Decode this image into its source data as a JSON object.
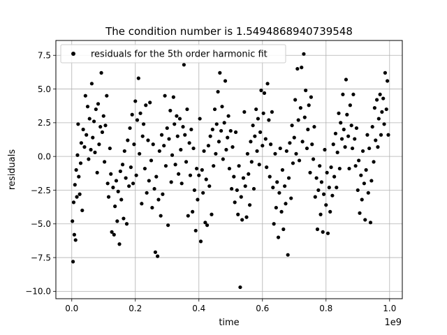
{
  "colors": {
    "points": "#000000",
    "grid": "#b0b0b0",
    "axes": "#000000",
    "background": "#ffffff"
  },
  "chart_data": {
    "type": "scatter",
    "title": "The condition number is 1.5494868940739548",
    "xlabel": "time",
    "ylabel": "residuals",
    "x_offset_label": "1e9",
    "xlim": [
      -0.05,
      1.04
    ],
    "ylim": [
      -10.55,
      8.6
    ],
    "x_ticks": [
      0.0,
      0.2,
      0.4,
      0.6,
      0.8,
      1.0
    ],
    "x_tick_labels": [
      "0.0",
      "0.2",
      "0.4",
      "0.6",
      "0.8",
      "1.0"
    ],
    "y_ticks": [
      -10.0,
      -7.5,
      -5.0,
      -2.5,
      0.0,
      2.5,
      5.0,
      7.5
    ],
    "y_tick_labels": [
      "−10.0",
      "−7.5",
      "−5.0",
      "−2.5",
      "0.0",
      "2.5",
      "5.0",
      "7.5"
    ],
    "grid": true,
    "legend": {
      "placement": "upper-left",
      "entries": [
        "residuals for the 5th order harmonic fit"
      ]
    },
    "series": [
      {
        "name": "residuals for the 5th order harmonic fit",
        "marker": "circle",
        "points": [
          [
            0.002,
            -4.8
          ],
          [
            0.004,
            -7.8
          ],
          [
            0.006,
            -3.4
          ],
          [
            0.008,
            -5.8
          ],
          [
            0.01,
            -2.1
          ],
          [
            0.012,
            -6.2
          ],
          [
            0.014,
            -1.0
          ],
          [
            0.016,
            -3.0
          ],
          [
            0.018,
            0.1
          ],
          [
            0.02,
            2.4
          ],
          [
            0.022,
            -1.5
          ],
          [
            0.025,
            -2.8
          ],
          [
            0.028,
            -0.5
          ],
          [
            0.03,
            1.0
          ],
          [
            0.033,
            -4.0
          ],
          [
            0.036,
            2.0
          ],
          [
            0.04,
            0.7
          ],
          [
            0.043,
            4.5
          ],
          [
            0.046,
            1.6
          ],
          [
            0.05,
            3.7
          ],
          [
            0.053,
            -0.2
          ],
          [
            0.056,
            2.8
          ],
          [
            0.06,
            0.5
          ],
          [
            0.063,
            5.4
          ],
          [
            0.066,
            1.4
          ],
          [
            0.07,
            2.6
          ],
          [
            0.073,
            0.3
          ],
          [
            0.076,
            3.5
          ],
          [
            0.08,
            -1.2
          ],
          [
            0.083,
            3.9
          ],
          [
            0.086,
            0.9
          ],
          [
            0.09,
            2.2
          ],
          [
            0.093,
            6.2
          ],
          [
            0.096,
            1.8
          ],
          [
            0.1,
            3.0
          ],
          [
            0.103,
            -0.4
          ],
          [
            0.106,
            2.3
          ],
          [
            0.11,
            4.5
          ],
          [
            0.113,
            -2.0
          ],
          [
            0.116,
            -3.0
          ],
          [
            0.12,
            0.6
          ],
          [
            0.123,
            -1.3
          ],
          [
            0.126,
            -5.6
          ],
          [
            0.13,
            -2.3
          ],
          [
            0.133,
            -5.8
          ],
          [
            0.136,
            -3.7
          ],
          [
            0.14,
            -1.8
          ],
          [
            0.143,
            -4.8
          ],
          [
            0.146,
            -2.6
          ],
          [
            0.15,
            -6.5
          ],
          [
            0.153,
            -1.1
          ],
          [
            0.156,
            -3.2
          ],
          [
            0.16,
            -0.6
          ],
          [
            0.163,
            -4.6
          ],
          [
            0.166,
            0.4
          ],
          [
            0.17,
            -1.6
          ],
          [
            0.173,
            -5.0
          ],
          [
            0.176,
            1.2
          ],
          [
            0.18,
            -2.2
          ],
          [
            0.183,
            2.1
          ],
          [
            0.186,
            -0.8
          ],
          [
            0.19,
            3.1
          ],
          [
            0.193,
            -2.0
          ],
          [
            0.196,
            0.9
          ],
          [
            0.2,
            4.1
          ],
          [
            0.203,
            -1.4
          ],
          [
            0.206,
            2.7
          ],
          [
            0.21,
            5.8
          ],
          [
            0.213,
            0.2
          ],
          [
            0.216,
            3.2
          ],
          [
            0.22,
            -3.5
          ],
          [
            0.223,
            1.5
          ],
          [
            0.226,
            2.4
          ],
          [
            0.23,
            -0.9
          ],
          [
            0.233,
            3.8
          ],
          [
            0.236,
            -2.7
          ],
          [
            0.24,
            1.2
          ],
          [
            0.243,
            -1.8
          ],
          [
            0.246,
            4.0
          ],
          [
            0.25,
            -0.3
          ],
          [
            0.253,
            -3.8
          ],
          [
            0.256,
            0.9
          ],
          [
            0.26,
            -2.4
          ],
          [
            0.263,
            -7.1
          ],
          [
            0.266,
            -1.5
          ],
          [
            0.27,
            -7.4
          ],
          [
            0.273,
            -3.2
          ],
          [
            0.276,
            0.4
          ],
          [
            0.28,
            -4.4
          ],
          [
            0.283,
            1.6
          ],
          [
            0.286,
            -2.8
          ],
          [
            0.29,
            0.8
          ],
          [
            0.293,
            4.5
          ],
          [
            0.296,
            -0.7
          ],
          [
            0.3,
            2.1
          ],
          [
            0.303,
            -5.1
          ],
          [
            0.306,
            1.3
          ],
          [
            0.31,
            3.4
          ],
          [
            0.313,
            -1.9
          ],
          [
            0.316,
            0.1
          ],
          [
            0.32,
            4.4
          ],
          [
            0.323,
            2.4
          ],
          [
            0.326,
            -0.6
          ],
          [
            0.33,
            3.0
          ],
          [
            0.333,
            1.5
          ],
          [
            0.336,
            -1.3
          ],
          [
            0.34,
            2.8
          ],
          [
            0.343,
            0.5
          ],
          [
            0.346,
            -2.0
          ],
          [
            0.35,
            2.2
          ],
          [
            0.353,
            6.8
          ],
          [
            0.356,
            1.6
          ],
          [
            0.36,
            -0.4
          ],
          [
            0.363,
            3.5
          ],
          [
            0.366,
            -4.4
          ],
          [
            0.37,
            1.0
          ],
          [
            0.373,
            -1.4
          ],
          [
            0.376,
            2.0
          ],
          [
            0.38,
            -4.1
          ],
          [
            0.383,
            0.6
          ],
          [
            0.386,
            -2.5
          ],
          [
            0.39,
            -5.5
          ],
          [
            0.393,
            -0.9
          ],
          [
            0.396,
            -3.2
          ],
          [
            0.4,
            -1.4
          ],
          [
            0.403,
            2.8
          ],
          [
            0.406,
            -6.3
          ],
          [
            0.41,
            -1.0
          ],
          [
            0.413,
            -2.7
          ],
          [
            0.416,
            0.4
          ],
          [
            0.42,
            -4.9
          ],
          [
            0.423,
            -1.7
          ],
          [
            0.426,
            -5.1
          ],
          [
            0.43,
            0.8
          ],
          [
            0.433,
            -2.2
          ],
          [
            0.436,
            1.5
          ],
          [
            0.44,
            -4.3
          ],
          [
            0.443,
            2.0
          ],
          [
            0.446,
            -0.7
          ],
          [
            0.45,
            3.5
          ],
          [
            0.453,
            0.2
          ],
          [
            0.456,
            2.4
          ],
          [
            0.46,
            4.8
          ],
          [
            0.463,
            1.1
          ],
          [
            0.466,
            6.2
          ],
          [
            0.47,
            1.9
          ],
          [
            0.473,
            3.7
          ],
          [
            0.476,
            -0.2
          ],
          [
            0.48,
            2.5
          ],
          [
            0.483,
            5.6
          ],
          [
            0.486,
            0.5
          ],
          [
            0.49,
            1.4
          ],
          [
            0.493,
            3.0
          ],
          [
            0.496,
            -0.9
          ],
          [
            0.5,
            1.9
          ],
          [
            0.503,
            -2.4
          ],
          [
            0.506,
            0.7
          ],
          [
            0.51,
            -1.5
          ],
          [
            0.513,
            -3.4
          ],
          [
            0.516,
            1.8
          ],
          [
            0.52,
            -2.5
          ],
          [
            0.523,
            -4.3
          ],
          [
            0.526,
            -0.7
          ],
          [
            0.53,
            -9.7
          ],
          [
            0.533,
            -3.0
          ],
          [
            0.536,
            -4.7
          ],
          [
            0.54,
            -1.6
          ],
          [
            0.543,
            3.3
          ],
          [
            0.546,
            -2.2
          ],
          [
            0.55,
            -4.5
          ],
          [
            0.553,
            0.2
          ],
          [
            0.556,
            -1.3
          ],
          [
            0.56,
            -3.6
          ],
          [
            0.563,
            1.1
          ],
          [
            0.566,
            -0.4
          ],
          [
            0.57,
            2.3
          ],
          [
            0.573,
            -2.4
          ],
          [
            0.576,
            1.5
          ],
          [
            0.58,
            3.5
          ],
          [
            0.583,
            0.4
          ],
          [
            0.586,
            2.8
          ],
          [
            0.59,
            -0.6
          ],
          [
            0.593,
            1.8
          ],
          [
            0.596,
            4.9
          ],
          [
            0.6,
            0.8
          ],
          [
            0.603,
            3.2
          ],
          [
            0.606,
            4.7
          ],
          [
            0.61,
            1.3
          ],
          [
            0.613,
            -0.8
          ],
          [
            0.616,
            5.4
          ],
          [
            0.62,
            2.7
          ],
          [
            0.623,
            -1.5
          ],
          [
            0.626,
            0.9
          ],
          [
            0.63,
            3.3
          ],
          [
            0.633,
            -2.3
          ],
          [
            0.636,
            -5.0
          ],
          [
            0.64,
            0.2
          ],
          [
            0.643,
            -3.8
          ],
          [
            0.646,
            -1.9
          ],
          [
            0.65,
            -6.0
          ],
          [
            0.653,
            -2.7
          ],
          [
            0.656,
            0.6
          ],
          [
            0.66,
            -4.1
          ],
          [
            0.663,
            -1.0
          ],
          [
            0.666,
            -5.4
          ],
          [
            0.67,
            -2.2
          ],
          [
            0.673,
            -3.5
          ],
          [
            0.676,
            0.4
          ],
          [
            0.68,
            -7.3
          ],
          [
            0.683,
            -1.6
          ],
          [
            0.686,
            1.0
          ],
          [
            0.69,
            -3.1
          ],
          [
            0.693,
            2.3
          ],
          [
            0.696,
            -0.5
          ],
          [
            0.7,
            1.4
          ],
          [
            0.703,
            4.2
          ],
          [
            0.706,
            0.2
          ],
          [
            0.71,
            6.5
          ],
          [
            0.713,
            2.7
          ],
          [
            0.716,
            -0.3
          ],
          [
            0.72,
            3.6
          ],
          [
            0.723,
            6.6
          ],
          [
            0.726,
            1.1
          ],
          [
            0.73,
            7.6
          ],
          [
            0.733,
            2.9
          ],
          [
            0.736,
            4.9
          ],
          [
            0.74,
            0.6
          ],
          [
            0.743,
            2.0
          ],
          [
            0.746,
            3.8
          ],
          [
            0.75,
            -1.2
          ],
          [
            0.753,
            4.4
          ],
          [
            0.756,
            0.9
          ],
          [
            0.76,
            -0.2
          ],
          [
            0.763,
            2.2
          ],
          [
            0.766,
            -3.0
          ],
          [
            0.77,
            -1.6
          ],
          [
            0.773,
            -5.4
          ],
          [
            0.776,
            -2.5
          ],
          [
            0.78,
            -0.7
          ],
          [
            0.783,
            -4.3
          ],
          [
            0.786,
            -1.9
          ],
          [
            0.79,
            -5.6
          ],
          [
            0.793,
            -2.8
          ],
          [
            0.796,
            0.5
          ],
          [
            0.8,
            -3.6
          ],
          [
            0.803,
            -1.2
          ],
          [
            0.806,
            -5.7
          ],
          [
            0.81,
            -2.3
          ],
          [
            0.813,
            -4.1
          ],
          [
            0.816,
            -0.8
          ],
          [
            0.82,
            -2.9
          ],
          [
            0.823,
            0.9
          ],
          [
            0.826,
            -1.5
          ],
          [
            0.83,
            1.7
          ],
          [
            0.833,
            -2.3
          ],
          [
            0.836,
            0.3
          ],
          [
            0.84,
            3.2
          ],
          [
            0.843,
            -0.9
          ],
          [
            0.846,
            2.5
          ],
          [
            0.85,
            1.3
          ],
          [
            0.853,
            4.6
          ],
          [
            0.856,
            2.0
          ],
          [
            0.86,
            0.7
          ],
          [
            0.863,
            5.7
          ],
          [
            0.866,
            3.1
          ],
          [
            0.87,
            1.5
          ],
          [
            0.873,
            -0.9
          ],
          [
            0.876,
            3.8
          ],
          [
            0.88,
            2.3
          ],
          [
            0.883,
            0.6
          ],
          [
            0.886,
            4.6
          ],
          [
            0.89,
            1.3
          ],
          [
            0.893,
            -0.7
          ],
          [
            0.896,
            2.1
          ],
          [
            0.9,
            -2.5
          ],
          [
            0.903,
            -0.3
          ],
          [
            0.906,
            -4.2
          ],
          [
            0.91,
            -1.4
          ],
          [
            0.913,
            -3.2
          ],
          [
            0.916,
            0.4
          ],
          [
            0.92,
            -2.0
          ],
          [
            0.923,
            -4.7
          ],
          [
            0.926,
            -1.0
          ],
          [
            0.93,
            1.6
          ],
          [
            0.933,
            -2.7
          ],
          [
            0.936,
            0.6
          ],
          [
            0.94,
            -4.9
          ],
          [
            0.943,
            -1.8
          ],
          [
            0.946,
            2.2
          ],
          [
            0.95,
            -0.4
          ],
          [
            0.953,
            3.6
          ],
          [
            0.956,
            1.2
          ],
          [
            0.96,
            4.2
          ],
          [
            0.963,
            0.7
          ],
          [
            0.966,
            2.8
          ],
          [
            0.97,
            4.6
          ],
          [
            0.973,
            1.6
          ],
          [
            0.976,
            3.3
          ],
          [
            0.98,
            4.3
          ],
          [
            0.983,
            2.4
          ],
          [
            0.986,
            6.2
          ],
          [
            0.99,
            3.5
          ],
          [
            0.993,
            5.6
          ],
          [
            0.996,
            1.6
          ]
        ]
      }
    ]
  }
}
